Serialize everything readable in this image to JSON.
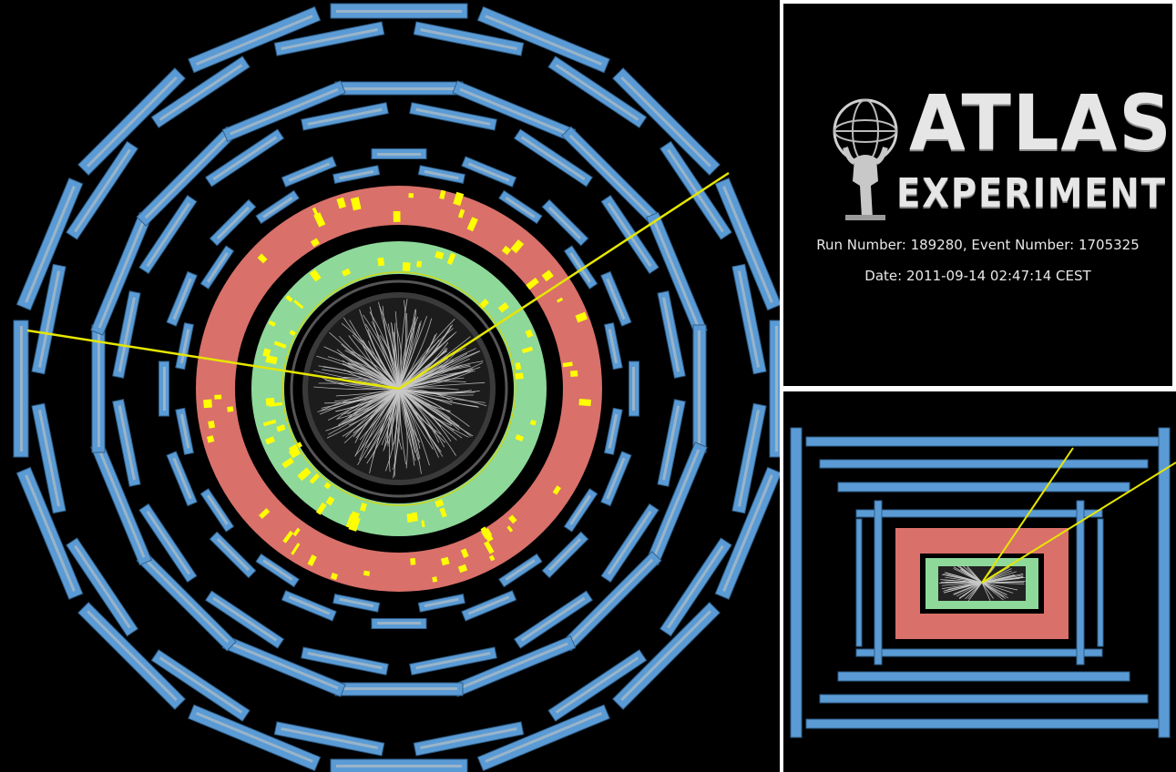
{
  "logo": {
    "title": "ATLAS",
    "subtitle": "EXPERIMENT"
  },
  "event_info": {
    "run_line": "Run Number: 189280, Event Number: 1705325",
    "date_line": "Date: 2011-09-14 02:47:14 CEST"
  },
  "colors": {
    "background": "#000000",
    "muon_chamber": "#5b9bd5",
    "muon_chamber_inner": "#9ab4c8",
    "hadronic_calorimeter": "#d9706a",
    "em_calorimeter": "#8ed89a",
    "inner_detector": "#3a3a3a",
    "tracks": "#c8c8c8",
    "energy_deposits": "#ffff00",
    "muon_tracks": "#e6e600",
    "frame": "#ffffff"
  },
  "views": [
    "transverse-view",
    "longitudinal-view"
  ]
}
